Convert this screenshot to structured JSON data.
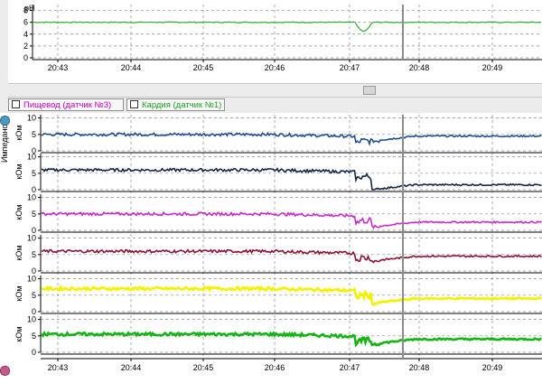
{
  "colors": {
    "ph": "#2eaa2e",
    "impedance": [
      "#1f4e8c",
      "#14284a",
      "#c82cc8",
      "#8c1230",
      "#f2f200",
      "#14b414"
    ],
    "tab_esophagus": "#c000c0",
    "tab_cardia": "#20a020",
    "grid": "#777777",
    "cursor": "#8c8c8c"
  },
  "time_axis": {
    "ticks": [
      "20:43",
      "20:44",
      "20:45",
      "20:46",
      "20:47",
      "20:48",
      "20:49"
    ]
  },
  "ph_panel": {
    "label": "pH",
    "yticks": [
      "8",
      "6",
      "4",
      "2",
      "0"
    ]
  },
  "tabs": [
    {
      "label": "Пищевод (датчик №3)"
    },
    {
      "label": "Кардия (датчик №1)"
    }
  ],
  "impedance_panel": {
    "side_label": "Импеданс",
    "unit": "кОм",
    "yticks": [
      "10",
      "5",
      "0"
    ]
  },
  "icons": {
    "side_top": "impedance-icon",
    "side_bottom": "settings-icon",
    "divider": "splitter-handle-icon"
  },
  "chart_data": [
    {
      "type": "line",
      "title": "",
      "ylabel": "pH",
      "ylim": [
        0,
        9
      ],
      "xticks": [
        "20:43",
        "20:44",
        "20:45",
        "20:46",
        "20:47",
        "20:48",
        "20:49"
      ],
      "series": [
        {
          "baseline": 6.0,
          "dip_value": 4.5,
          "dip_at": "20:47"
        }
      ]
    },
    {
      "type": "line",
      "ylabel": "кОм",
      "ylim": [
        0,
        11
      ],
      "xticks": [
        "20:43",
        "20:44",
        "20:45",
        "20:46",
        "20:47",
        "20:48",
        "20:49"
      ],
      "series": [
        {
          "color": "#1f4e8c",
          "before": 5.0,
          "after": 4.5,
          "spike": 10
        },
        {
          "color": "#14284a",
          "before": 6.0,
          "after": 1.5,
          "spike": 10
        },
        {
          "color": "#c82cc8",
          "before": 5.0,
          "after": 2.5,
          "spike": 10
        },
        {
          "color": "#8c1230",
          "before": 6.0,
          "after": 4.5,
          "spike": 10
        },
        {
          "color": "#f2f200",
          "before": 7.0,
          "after": 4.0,
          "spike": 10
        },
        {
          "color": "#14b414",
          "before": 5.5,
          "after": 4.0,
          "spike": 8
        }
      ]
    }
  ]
}
